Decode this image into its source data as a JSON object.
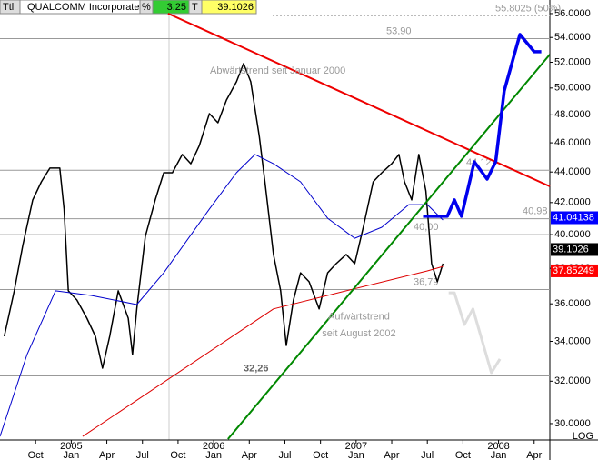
{
  "chart_data": {
    "type": "line",
    "header": {
      "symbol": "Ttl",
      "name": "QUALCOMM Incorporated",
      "pct_label": "%",
      "pct": "3.25",
      "t_label": "T",
      "last": "39.1026"
    },
    "log_scale": true,
    "scale_label": "LOG",
    "xlim": [
      2004.5,
      2008.36
    ],
    "ylim": [
      29.26,
      57.17
    ],
    "xticks": [
      {
        "value": 2004.75,
        "label": "Oct"
      },
      {
        "value": 2005.0,
        "label": "Jan"
      },
      {
        "value": 2005.25,
        "label": "Apr"
      },
      {
        "value": 2005.5,
        "label": "Jul"
      },
      {
        "value": 2005.75,
        "label": "Oct"
      },
      {
        "value": 2006.0,
        "label": "Jan"
      },
      {
        "value": 2006.25,
        "label": "Apr"
      },
      {
        "value": 2006.5,
        "label": "Jul"
      },
      {
        "value": 2006.75,
        "label": "Oct"
      },
      {
        "value": 2007.0,
        "label": "Jan"
      },
      {
        "value": 2007.25,
        "label": "Apr"
      },
      {
        "value": 2007.5,
        "label": "Jul"
      },
      {
        "value": 2007.75,
        "label": "Oct"
      },
      {
        "value": 2008.0,
        "label": "Jan"
      },
      {
        "value": 2008.25,
        "label": "Apr"
      }
    ],
    "year_ticks": [
      2005,
      2006,
      2007,
      2008
    ],
    "yticks": [
      {
        "value": 56,
        "label": "56.0000"
      },
      {
        "value": 54,
        "label": "54.0000"
      },
      {
        "value": 52,
        "label": "52.0000"
      },
      {
        "value": 50,
        "label": "50.0000"
      },
      {
        "value": 48,
        "label": "48.0000"
      },
      {
        "value": 46,
        "label": "46.0000"
      },
      {
        "value": 44,
        "label": "44.0000"
      },
      {
        "value": 42,
        "label": "42.0000"
      },
      {
        "value": 40,
        "label": "40.0000"
      },
      {
        "value": 38,
        "label": "38.0000"
      },
      {
        "value": 36,
        "label": "36.0000"
      },
      {
        "value": 34,
        "label": "34.0000"
      },
      {
        "value": 32,
        "label": "32.0000"
      },
      {
        "value": 30,
        "label": "30.0000"
      }
    ],
    "levels": [
      {
        "value": 55.8025,
        "label": "55.8025 (50%)"
      },
      {
        "value": 53.9,
        "label": "53,90"
      },
      {
        "value": 44.12,
        "label": "44,12"
      },
      {
        "value": 40.98,
        "label": "40,98"
      },
      {
        "value": 40.0,
        "label": "40,00"
      },
      {
        "value": 36.79,
        "label": "36,79"
      },
      {
        "value": 32.26,
        "label": "32,26"
      }
    ],
    "badges": [
      {
        "value": 41.04138,
        "label": "41.04138",
        "color": "#0000ff",
        "text_color": "#ffffff"
      },
      {
        "value": 39.1026,
        "label": "39.1026",
        "color": "#000000",
        "text_color": "#ffffff"
      },
      {
        "value": 37.85249,
        "label": "37.85249",
        "color": "#ff0000",
        "text_color": "#ffffff"
      }
    ],
    "annotations": [
      {
        "text": "Abwärtstrend seit Januar 2000",
        "x": 2006.45,
        "y": 51.3
      },
      {
        "text": "Aufwärtstrend",
        "x": 2007.02,
        "y": 35.3
      },
      {
        "text": "seit August 2002",
        "x": 2007.02,
        "y": 34.4
      }
    ],
    "series": [
      {
        "color": "#000000",
        "width": 1.5,
        "x": [
          2004.53,
          2004.6,
          2004.66,
          2004.73,
          2004.79,
          2004.85,
          2004.92,
          2004.95,
          2004.98,
          2005.04,
          2005.11,
          2005.17,
          2005.22,
          2005.27,
          2005.33,
          2005.4,
          2005.43,
          2005.46,
          2005.52,
          2005.59,
          2005.65,
          2005.71,
          2005.78,
          2005.84,
          2005.9,
          2005.97,
          2006.03,
          2006.09,
          2006.16,
          2006.21,
          2006.26,
          2006.32,
          2006.36,
          2006.42,
          2006.47,
          2006.51,
          2006.56,
          2006.61,
          2006.67,
          2006.74,
          2006.8,
          2006.86,
          2006.93,
          2006.99,
          2007.05,
          2007.12,
          2007.18,
          2007.25,
          2007.3,
          2007.34,
          2007.39,
          2007.44,
          2007.49,
          2007.53,
          2007.57,
          2007.61
        ],
        "values": [
          34.26,
          36.72,
          39.35,
          42.17,
          43.35,
          44.26,
          44.26,
          41.59,
          36.72,
          36.21,
          35.22,
          34.26,
          32.64,
          34.26,
          36.72,
          35.22,
          33.33,
          35.72,
          39.89,
          42.17,
          43.95,
          43.95,
          45.19,
          44.56,
          45.82,
          48.09,
          47.43,
          49.1,
          50.48,
          51.9,
          50.48,
          46.45,
          43.35,
          38.81,
          36.72,
          33.79,
          36.21,
          37.74,
          37.23,
          35.72,
          37.74,
          38.27,
          38.81,
          38.27,
          40.45,
          43.35,
          43.95,
          44.56,
          45.19,
          43.35,
          42.17,
          45.19,
          42.75,
          38.27,
          37.23,
          38.27
        ]
      },
      {
        "color": "#0000cc",
        "width": 1,
        "x": [
          2004.5,
          2004.69,
          2004.89,
          2005.14,
          2005.46,
          2005.65,
          2005.97,
          2006.16,
          2006.29,
          2006.42,
          2006.61,
          2006.8,
          2006.99,
          2007.18,
          2007.37,
          2007.5,
          2007.61
        ],
        "values": [
          29.42,
          33.33,
          36.72,
          36.46,
          35.96,
          37.74,
          41.59,
          43.95,
          45.19,
          44.56,
          43.35,
          41.01,
          39.78,
          40.45,
          41.87,
          41.87,
          40.9
        ]
      },
      {
        "color": "#dd0000",
        "width": 1,
        "x": [
          2005.08,
          2006.42,
          2006.93,
          2007.5,
          2007.61
        ],
        "values": [
          29.42,
          35.72,
          36.72,
          37.85,
          38.11
        ]
      },
      {
        "color": "#ee0000",
        "width": 2,
        "x": [
          2005.68,
          2008.36
        ],
        "values": [
          56.0,
          43.05
        ]
      },
      {
        "color": "#008800",
        "width": 2,
        "x": [
          2006.1,
          2008.36
        ],
        "values": [
          29.3,
          52.62
        ]
      },
      {
        "color": "#0000ee",
        "width": 3.5,
        "x": [
          2007.47,
          2007.6,
          2007.64,
          2007.69,
          2007.74,
          2007.83,
          2007.92,
          2007.98,
          2008.04,
          2008.15,
          2008.25,
          2008.3
        ],
        "values": [
          41.13,
          41.13,
          41.13,
          42.17,
          41.13,
          44.69,
          43.53,
          44.69,
          49.78,
          54.25,
          52.84,
          52.84
        ]
      },
      {
        "color": "#dddddd",
        "width": 3,
        "x": [
          2007.65,
          2007.69,
          2007.76,
          2007.82,
          2007.95,
          2008.01
        ],
        "values": [
          36.61,
          36.61,
          34.88,
          35.72,
          32.42,
          33.1
        ]
      }
    ]
  }
}
